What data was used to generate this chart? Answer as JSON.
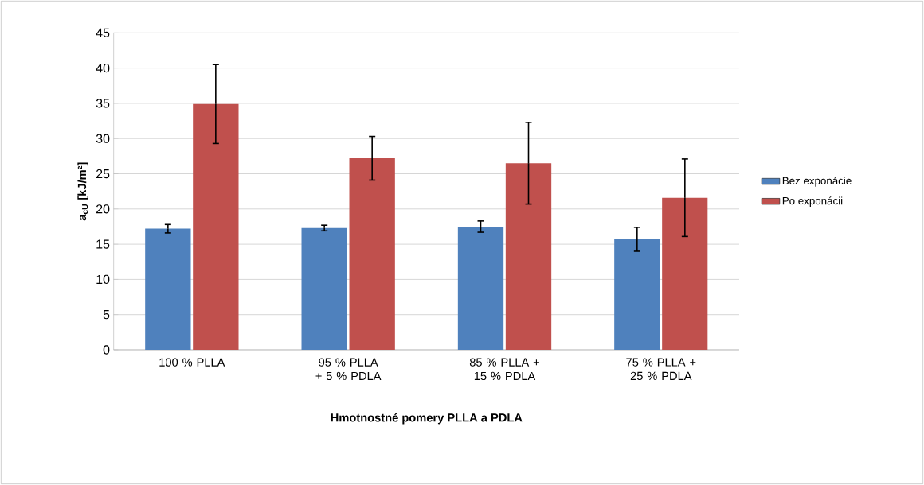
{
  "chart_data": {
    "type": "bar",
    "xlabel": "Hmotnostné pomery PLLA a PDLA",
    "ylabel": "**a$_{cU}$ [kJ/m²]**",
    "categories": [
      "100 % PLLA",
      "95 % PLLA + 5 % PDLA",
      "85 % PLLA + 15 % PDLA",
      "75 % PLLA + 25 % PDLA"
    ],
    "series": [
      {
        "name": "Bez exponácie",
        "color": "#4f81bd",
        "values": [
          17.2,
          17.3,
          17.5,
          15.7
        ],
        "errors": [
          0.6,
          0.4,
          0.8,
          1.7
        ]
      },
      {
        "name": "Po exponácii",
        "color": "#c0504d",
        "values": [
          34.9,
          27.2,
          26.5,
          21.6
        ],
        "errors": [
          5.6,
          3.1,
          5.8,
          5.5
        ]
      }
    ],
    "ylim": [
      0,
      45
    ],
    "yticks": [
      0,
      5,
      10,
      15,
      20,
      25,
      30,
      35,
      40,
      45
    ],
    "grid": "y",
    "legend": "right"
  }
}
